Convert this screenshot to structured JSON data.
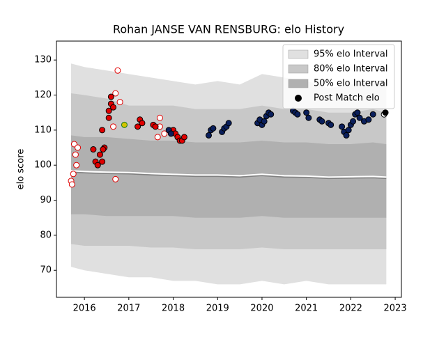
{
  "chart_data": {
    "type": "band-scatter",
    "title": "Rohan JANSE VAN RENSBURG: elo History",
    "y_label": "elo score",
    "xlim": [
      2015.37,
      2023.14
    ],
    "xticks": [
      2016,
      2017,
      2018,
      2019,
      2020,
      2021,
      2022,
      2023
    ],
    "ylim": [
      62.3,
      135.4
    ],
    "yticks": [
      70,
      80,
      90,
      100,
      110,
      120,
      130
    ],
    "x": [
      2015.7,
      2016.0,
      2016.5,
      2017.0,
      2017.5,
      2018.0,
      2018.5,
      2019.0,
      2019.5,
      2020.0,
      2020.5,
      2021.0,
      2021.5,
      2022.0,
      2022.5,
      2022.8
    ],
    "bands": [
      {
        "name": "95% elo Interval",
        "color": "#e0e0e0",
        "upper": [
          129,
          128,
          127,
          126,
          125,
          124,
          123,
          124,
          123,
          126,
          125,
          124,
          122,
          123,
          124,
          123
        ],
        "lower": [
          71,
          70,
          69,
          68,
          68,
          67,
          67,
          66,
          66,
          67,
          66,
          67,
          66,
          66,
          66,
          66
        ]
      },
      {
        "name": "80% elo Interval",
        "color": "#c8c8c8",
        "upper": [
          120.5,
          120,
          119,
          117,
          117,
          117,
          116,
          116,
          116,
          117,
          116,
          116,
          115,
          115,
          116,
          115
        ],
        "lower": [
          77.5,
          77,
          77,
          77,
          76.5,
          76.5,
          76,
          76,
          76,
          76.5,
          76,
          76,
          76,
          76,
          76,
          76
        ]
      },
      {
        "name": "50% elo Interval",
        "color": "#b0b0b0",
        "upper": [
          108.5,
          108,
          108,
          107.5,
          107,
          107,
          106.5,
          106.5,
          106.5,
          107,
          106.5,
          106.5,
          106,
          106,
          106.5,
          106
        ],
        "lower": [
          86,
          86,
          85.5,
          85.5,
          85.5,
          85.5,
          85,
          85,
          85,
          85.5,
          85,
          85,
          85,
          85,
          85,
          85
        ]
      }
    ],
    "mean": {
      "color": "#808080",
      "values": [
        98,
        97.8,
        97.6,
        97.5,
        97.2,
        97,
        96.8,
        96.8,
        96.6,
        97,
        96.6,
        96.5,
        96.2,
        96.3,
        96.4,
        96.2
      ]
    },
    "series": [
      {
        "name": "Post Match elo",
        "color": "#000000"
      }
    ],
    "marker_groups": [
      {
        "fill": "#ffffff",
        "edge": "#e00000",
        "x": [
          2015.7,
          2015.72,
          2015.75,
          2015.77,
          2015.8,
          2015.82,
          2015.85,
          2016.65,
          2016.7,
          2016.75,
          2016.7,
          2016.8,
          2017.65,
          2017.7,
          2017.7,
          2017.8
        ],
        "values": [
          95.5,
          94.5,
          97.5,
          106,
          103,
          100,
          105,
          111,
          96,
          127,
          120.5,
          118,
          108,
          113.5,
          111,
          109
        ]
      },
      {
        "fill": "#e00000",
        "edge": "#000000",
        "x": [
          2016.2,
          2016.25,
          2016.3,
          2016.35,
          2016.4,
          2016.45,
          2016.42,
          2016.4,
          2016.55,
          2016.55,
          2016.6,
          2016.6,
          2016.65,
          2017.2,
          2017.25,
          2017.3,
          2017.55,
          2017.6,
          2018.0,
          2018.05,
          2018.1,
          2018.15,
          2018.2,
          2018.25
        ],
        "values": [
          104.5,
          101,
          100,
          103,
          101,
          105,
          104.5,
          110,
          113.5,
          115.5,
          117.5,
          119.5,
          116.5,
          111,
          113,
          112,
          111.5,
          111,
          110,
          109,
          108,
          107,
          107,
          108
        ]
      },
      {
        "fill": "#d4c400",
        "edge": "#1a7a1a",
        "x": [
          2016.9
        ],
        "values": [
          111.5
        ]
      },
      {
        "fill": "#0a1f5c",
        "edge": "#000000",
        "x": [
          2017.9,
          2017.95,
          2018.8,
          2018.85,
          2018.9,
          2019.1,
          2019.15,
          2019.2,
          2019.25,
          2019.9,
          2019.95,
          2020.0,
          2020.05,
          2020.1,
          2020.15,
          2020.2,
          2020.7,
          2020.75,
          2020.8,
          2021.0,
          2021.05,
          2021.3,
          2021.35,
          2021.5,
          2021.55,
          2021.8,
          2021.85,
          2021.9,
          2021.95,
          2022.0,
          2022.05,
          2022.1,
          2022.15,
          2022.2,
          2022.3,
          2022.4,
          2022.5
        ],
        "values": [
          110,
          109,
          108.5,
          110,
          110.5,
          109.5,
          110.5,
          111,
          112,
          112,
          113,
          111.5,
          112.5,
          114,
          115,
          114.5,
          115.5,
          115,
          114.5,
          115,
          113.5,
          113,
          112.5,
          112,
          111.5,
          111,
          109.5,
          108.5,
          110,
          111.5,
          112.5,
          114.5,
          115,
          113.5,
          112.5,
          113,
          114.5
        ]
      },
      {
        "fill": "#ffffff",
        "edge": "#000000",
        "x": [
          2022.75
        ],
        "values": [
          114.5
        ]
      },
      {
        "fill": "#000000",
        "edge": "#000000",
        "x": [
          2022.78
        ],
        "values": [
          115
        ]
      }
    ],
    "legend": "upper right"
  }
}
